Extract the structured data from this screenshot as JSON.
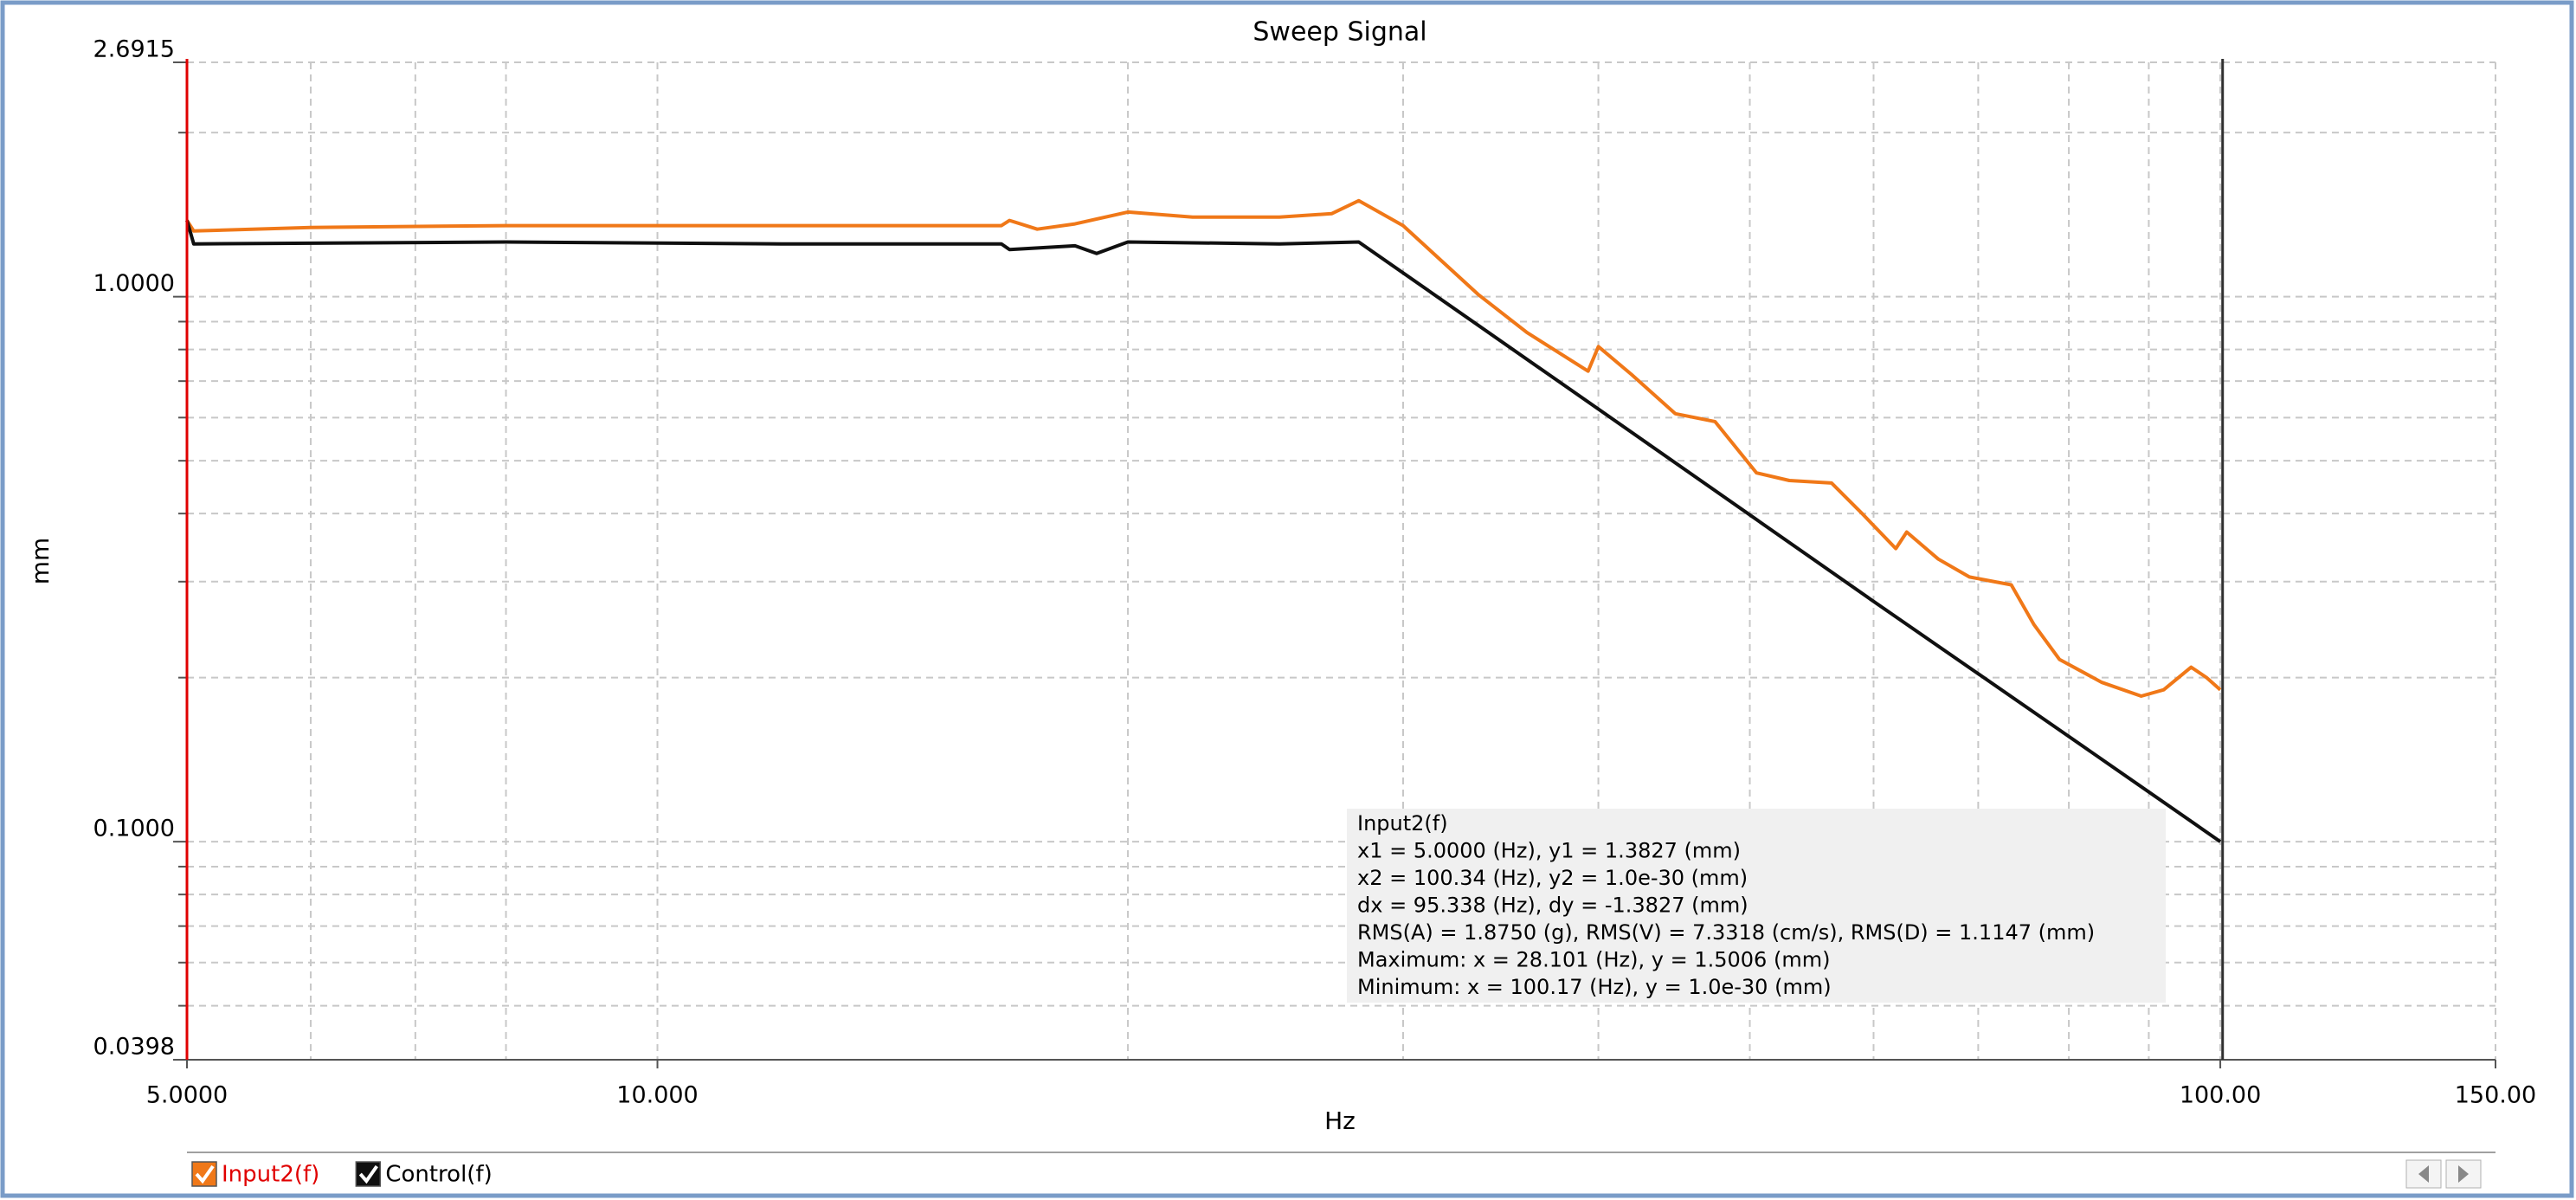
{
  "chart_data": {
    "type": "line",
    "title": "Sweep Signal",
    "xlabel": "Hz",
    "ylabel": "mm",
    "xscale": "log",
    "yscale": "log",
    "xlim": [
      5,
      150
    ],
    "ylim": [
      0.0398,
      2.6915
    ],
    "xticks": [
      {
        "value": 5,
        "label": "5.0000"
      },
      {
        "value": 10,
        "label": "10.000"
      },
      {
        "value": 100,
        "label": "100.00"
      },
      {
        "value": 150,
        "label": "150.00"
      }
    ],
    "yticks": [
      0.0398,
      {
        "value": 0.1,
        "label": "0.1000"
      },
      {
        "value": 1,
        "label": "1.0000"
      },
      2.6915
    ],
    "minor_xticks": [
      6,
      7,
      8,
      20,
      30,
      40,
      50,
      60,
      70,
      80,
      90
    ],
    "minor_yticks": [
      0.05,
      0.06,
      0.07,
      0.08,
      0.09,
      0.2,
      0.3,
      0.4,
      0.5,
      0.6,
      0.7,
      0.8,
      0.9,
      2
    ],
    "grid": true,
    "cursor_x": [
      5,
      100.34
    ],
    "cursor_colors": [
      "#e00000",
      "#303030"
    ],
    "series": [
      {
        "name": "Input2(f)",
        "color": "#f07818",
        "x": [
          5,
          5.05,
          6,
          8,
          10,
          13,
          16.6,
          16.8,
          17.5,
          18.5,
          20,
          22,
          25,
          27,
          28.1,
          30,
          33.5,
          36,
          39.4,
          40,
          42,
          44.8,
          47.5,
          50.5,
          53,
          56.4,
          59,
          62,
          63,
          66,
          69.1,
          73.5,
          76,
          78.9,
          84,
          89,
          92,
          95.8,
          98,
          100
        ],
        "values": [
          1.38,
          1.32,
          1.34,
          1.35,
          1.35,
          1.35,
          1.35,
          1.38,
          1.33,
          1.36,
          1.43,
          1.4,
          1.4,
          1.42,
          1.5,
          1.35,
          1.01,
          0.86,
          0.73,
          0.81,
          0.72,
          0.61,
          0.59,
          0.475,
          0.46,
          0.455,
          0.4,
          0.345,
          0.37,
          0.33,
          0.306,
          0.296,
          0.25,
          0.216,
          0.196,
          0.185,
          0.19,
          0.209,
          0.2,
          0.19
        ]
      },
      {
        "name": "Control(f)",
        "color": "#101010",
        "x": [
          5,
          5.05,
          8,
          12,
          16.6,
          16.8,
          18.5,
          19.1,
          20,
          25,
          28.1,
          40,
          60,
          80,
          100
        ],
        "values": [
          1.38,
          1.25,
          1.26,
          1.25,
          1.25,
          1.22,
          1.24,
          1.2,
          1.26,
          1.25,
          1.26,
          0.622,
          0.276,
          0.156,
          0.1
        ]
      }
    ],
    "annotation": [
      "Input2(f)",
      "x1 = 5.0000 (Hz), y1 = 1.3827 (mm)",
      "x2 = 100.34 (Hz), y2 = 1.0e-30 (mm)",
      "dx = 95.338 (Hz), dy = -1.3827 (mm)",
      "RMS(A) = 1.8750 (g), RMS(V) = 7.3318 (cm/s), RMS(D) = 1.1147 (mm)",
      "Maximum: x = 28.101 (Hz), y = 1.5006 (mm)",
      "Minimum: x = 100.17 (Hz), y = 1.0e-30 (mm)"
    ]
  }
}
